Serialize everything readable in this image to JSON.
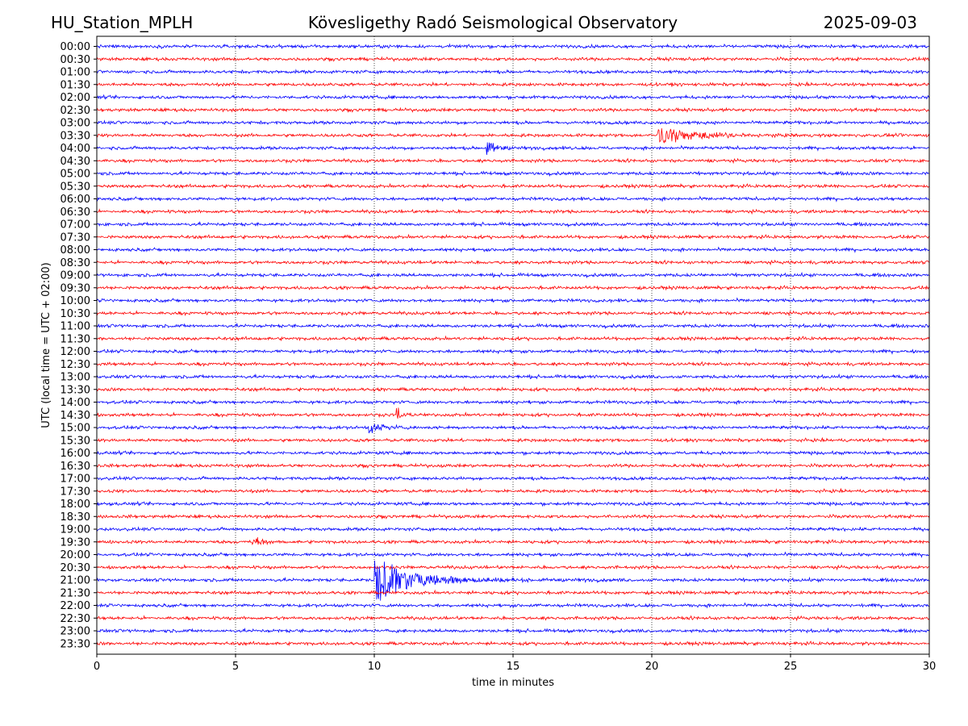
{
  "header": {
    "station": "HU_Station_MPLH",
    "observatory": "Kövesligethy Radó Seismological Observatory",
    "date": "2025-09-03"
  },
  "chart_data": {
    "type": "line",
    "title": "Kövesligethy Radó Seismological Observatory",
    "xlabel": "time in minutes",
    "ylabel": "UTC (local time = UTC + 02:00)",
    "xlim": [
      0,
      30
    ],
    "x_ticks": [
      "0",
      "5",
      "10",
      "15",
      "20",
      "25",
      "30"
    ],
    "x_grid": "dotted vertical lines at each 5 minutes",
    "row_interval_minutes": 30,
    "row_labels": [
      "00:00",
      "00:30",
      "01:00",
      "01:30",
      "02:00",
      "02:30",
      "03:00",
      "03:30",
      "04:00",
      "04:30",
      "05:00",
      "05:30",
      "06:00",
      "06:30",
      "07:00",
      "07:30",
      "08:00",
      "08:30",
      "09:00",
      "09:30",
      "10:00",
      "10:30",
      "11:00",
      "11:30",
      "12:00",
      "12:30",
      "13:00",
      "13:30",
      "14:00",
      "14:30",
      "15:00",
      "15:30",
      "16:00",
      "16:30",
      "17:00",
      "17:30",
      "18:00",
      "18:30",
      "19:00",
      "19:30",
      "20:00",
      "20:30",
      "21:00",
      "21:30",
      "22:00",
      "22:30",
      "23:00",
      "23:30"
    ],
    "trace_colors": [
      "#0000ff",
      "#ff0000"
    ],
    "noise_level": 0.25,
    "events": [
      {
        "row": "03:30",
        "start_min": 20.2,
        "peak_amp": 1.6,
        "decay_min": 1.2,
        "tail_min": 3.0,
        "color": "#ff0000"
      },
      {
        "row": "04:00",
        "start_min": 14.05,
        "peak_amp": 1.3,
        "decay_min": 0.35,
        "tail_min": 0.8,
        "color": "#0000ff"
      },
      {
        "row": "14:30",
        "start_min": 10.8,
        "peak_amp": 1.6,
        "decay_min": 0.15,
        "tail_min": 0.4,
        "color": "#ff0000"
      },
      {
        "row": "15:00",
        "start_min": 9.8,
        "peak_amp": 1.0,
        "decay_min": 0.5,
        "tail_min": 1.3,
        "color": "#0000ff"
      },
      {
        "row": "19:30",
        "start_min": 5.6,
        "peak_amp": 1.4,
        "decay_min": 0.2,
        "tail_min": 0.5,
        "color": "#ff0000"
      },
      {
        "row": "21:00",
        "start_min": 10.0,
        "peak_amp": 4.5,
        "decay_min": 0.9,
        "tail_min": 4.0,
        "color": "#0000ff"
      }
    ]
  }
}
